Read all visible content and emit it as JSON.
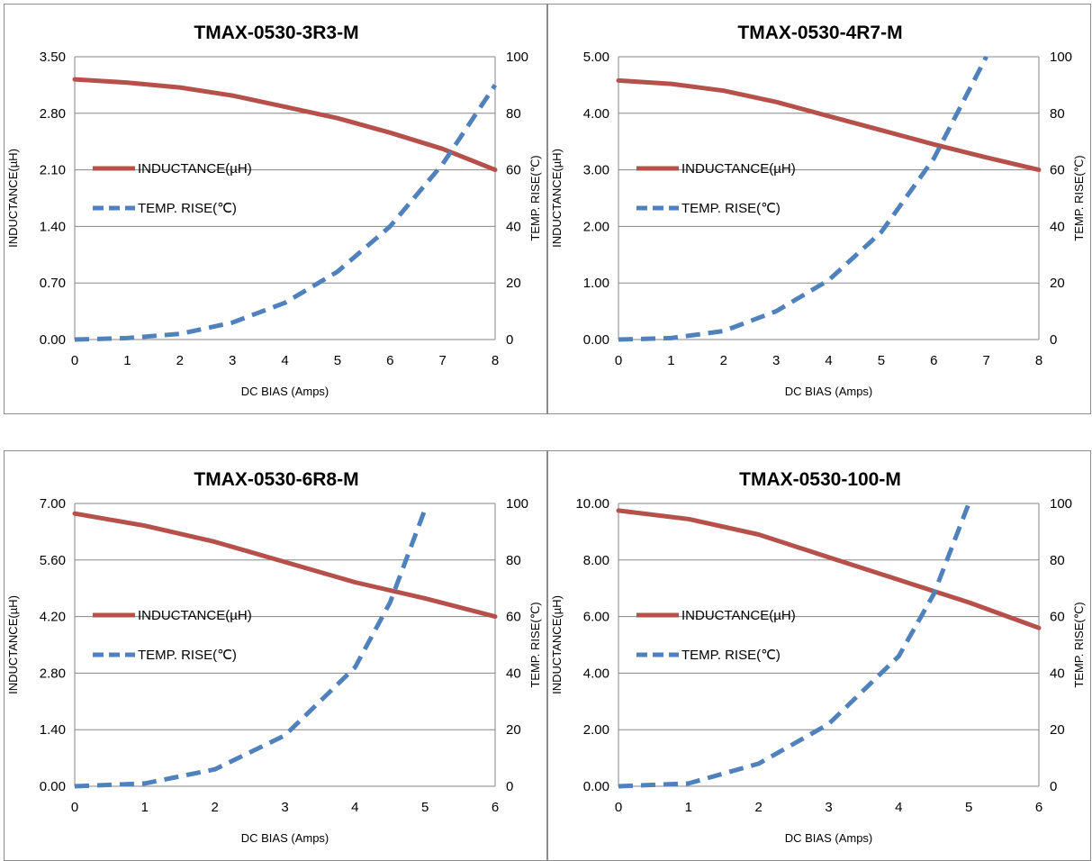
{
  "chart_data": [
    {
      "type": "line",
      "title": "TMAX-0530-3R3-M",
      "xlabel": "DC BIAS  (Amps)",
      "ylabel": "INDUCTANCE(µH)",
      "y2label": "TEMP. RISE(℃)",
      "xlim": [
        0,
        8
      ],
      "ylim": [
        0,
        3.5
      ],
      "y2lim": [
        0,
        100
      ],
      "xticks": [
        "0",
        "1",
        "2",
        "3",
        "4",
        "5",
        "6",
        "7",
        "8"
      ],
      "yticks": [
        "0.00",
        "0.70",
        "1.40",
        "2.10",
        "2.80",
        "3.50"
      ],
      "y2ticks": [
        "0",
        "20",
        "40",
        "60",
        "80",
        "100"
      ],
      "grid": true,
      "legend": "center-left",
      "series": [
        {
          "name": "INDUCTANCE(µH)",
          "axis": "left",
          "style": "solid",
          "color": "#b5504b",
          "x": [
            0,
            1,
            2,
            3,
            4,
            5,
            6,
            7,
            8
          ],
          "y": [
            3.22,
            3.18,
            3.12,
            3.02,
            2.88,
            2.74,
            2.56,
            2.36,
            2.1
          ]
        },
        {
          "name": "TEMP. RISE(℃)",
          "axis": "right",
          "style": "dashed",
          "color": "#4f81bd",
          "x": [
            0,
            1,
            2,
            3,
            4,
            5,
            6,
            7,
            8
          ],
          "y": [
            0,
            0.5,
            2,
            6,
            13,
            24,
            40,
            62,
            90
          ]
        }
      ]
    },
    {
      "type": "line",
      "title": "TMAX-0530-4R7-M",
      "xlabel": "DC BIAS  (Amps)",
      "ylabel": "INDUCTANCE(µH)",
      "y2label": "TEMP. RISE(℃)",
      "xlim": [
        0,
        8
      ],
      "ylim": [
        0,
        5
      ],
      "y2lim": [
        0,
        100
      ],
      "xticks": [
        "0",
        "1",
        "2",
        "3",
        "4",
        "5",
        "6",
        "7",
        "8"
      ],
      "yticks": [
        "0.00",
        "1.00",
        "2.00",
        "3.00",
        "4.00",
        "5.00"
      ],
      "y2ticks": [
        "0",
        "20",
        "40",
        "60",
        "80",
        "100"
      ],
      "grid": true,
      "legend": "center-left",
      "series": [
        {
          "name": "INDUCTANCE(µH)",
          "axis": "left",
          "style": "solid",
          "color": "#b5504b",
          "x": [
            0,
            1,
            2,
            3,
            4,
            5,
            6,
            7,
            8
          ],
          "y": [
            4.58,
            4.52,
            4.4,
            4.2,
            3.95,
            3.7,
            3.45,
            3.22,
            3.0
          ]
        },
        {
          "name": "TEMP. RISE(℃)",
          "axis": "right",
          "style": "dashed",
          "color": "#4f81bd",
          "x": [
            0,
            1,
            2,
            3,
            4,
            5,
            6,
            7
          ],
          "y": [
            0,
            0.5,
            3,
            10,
            21,
            38,
            64,
            100
          ]
        }
      ]
    },
    {
      "type": "line",
      "title": "TMAX-0530-6R8-M",
      "xlabel": "DC BIAS  (Amps)",
      "ylabel": "INDUCTANCE(µH)",
      "y2label": "TEMP. RISE(℃)",
      "xlim": [
        0,
        6
      ],
      "ylim": [
        0,
        7
      ],
      "y2lim": [
        0,
        100
      ],
      "xticks": [
        "0",
        "1",
        "2",
        "3",
        "4",
        "5",
        "6"
      ],
      "yticks": [
        "0.00",
        "1.40",
        "2.80",
        "4.20",
        "5.60",
        "7.00"
      ],
      "y2ticks": [
        "0",
        "20",
        "40",
        "60",
        "80",
        "100"
      ],
      "grid": true,
      "legend": "center-left",
      "series": [
        {
          "name": "INDUCTANCE(µH)",
          "axis": "left",
          "style": "solid",
          "color": "#b5504b",
          "x": [
            0,
            1,
            2,
            3,
            4,
            5,
            6
          ],
          "y": [
            6.75,
            6.45,
            6.05,
            5.55,
            5.05,
            4.65,
            4.2
          ]
        },
        {
          "name": "TEMP. RISE(℃)",
          "axis": "right",
          "style": "dashed",
          "color": "#4f81bd",
          "x": [
            0,
            1,
            2,
            3,
            4,
            4.5,
            5
          ],
          "y": [
            0,
            1,
            6,
            18,
            42,
            65,
            98
          ]
        }
      ]
    },
    {
      "type": "line",
      "title": "TMAX-0530-100-M",
      "xlabel": "DC BIAS  (Amps)",
      "ylabel": "INDUCTANCE(µH)",
      "y2label": "TEMP. RISE(℃)",
      "xlim": [
        0,
        6
      ],
      "ylim": [
        0,
        10
      ],
      "y2lim": [
        0,
        100
      ],
      "xticks": [
        "0",
        "1",
        "2",
        "3",
        "4",
        "5",
        "6"
      ],
      "yticks": [
        "0.00",
        "2.00",
        "4.00",
        "6.00",
        "8.00",
        "10.00"
      ],
      "y2ticks": [
        "0",
        "20",
        "40",
        "60",
        "80",
        "100"
      ],
      "grid": true,
      "legend": "center-left",
      "series": [
        {
          "name": "INDUCTANCE(µH)",
          "axis": "left",
          "style": "solid",
          "color": "#b5504b",
          "x": [
            0,
            1,
            2,
            3,
            4,
            5,
            6
          ],
          "y": [
            9.75,
            9.45,
            8.9,
            8.1,
            7.3,
            6.5,
            5.6
          ]
        },
        {
          "name": "TEMP. RISE(℃)",
          "axis": "right",
          "style": "dashed",
          "color": "#4f81bd",
          "x": [
            0,
            1,
            2,
            3,
            4,
            4.5,
            5
          ],
          "y": [
            0,
            1,
            8,
            22,
            46,
            68,
            100
          ]
        }
      ]
    }
  ]
}
